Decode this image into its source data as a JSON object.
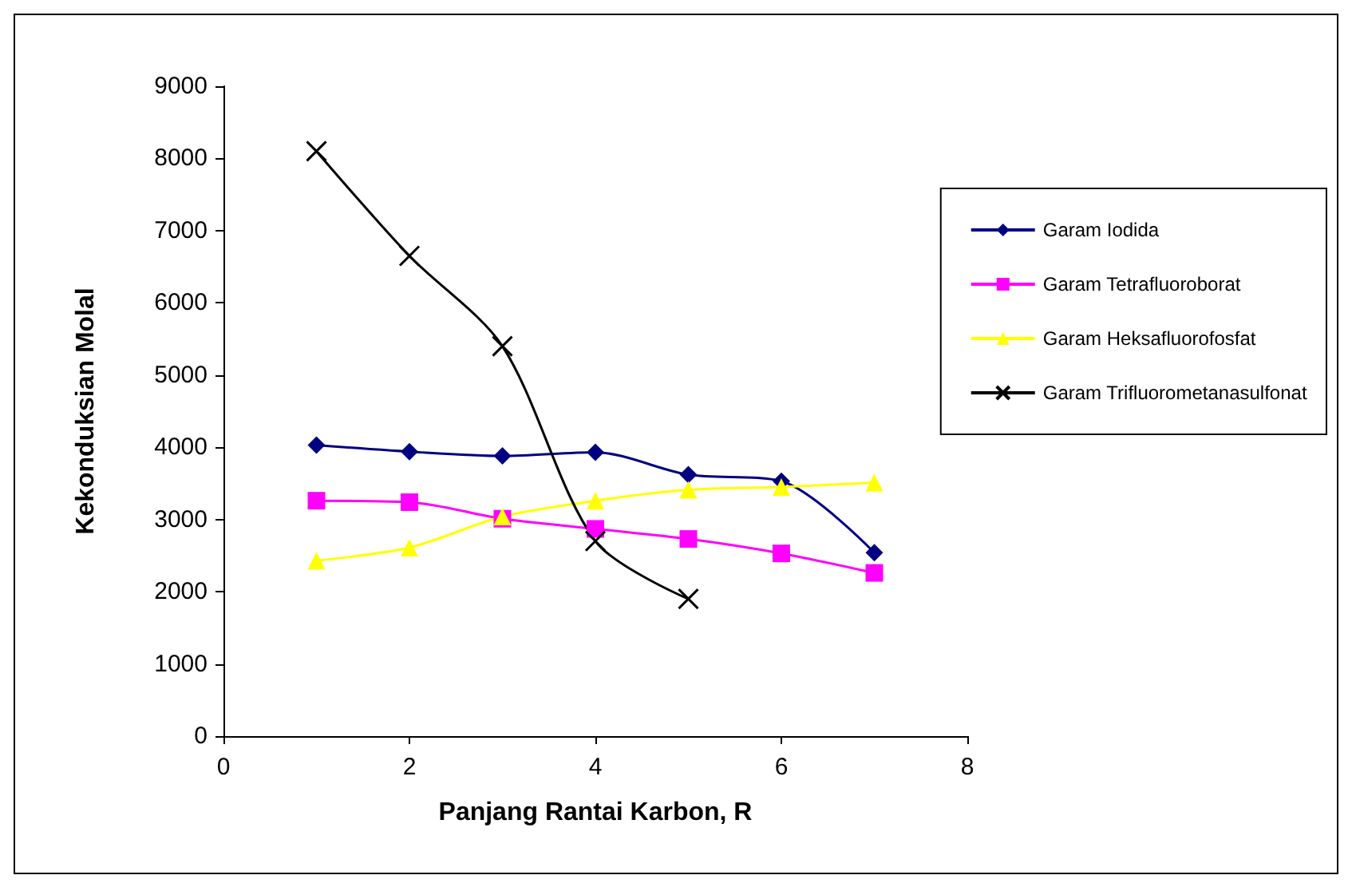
{
  "chart_data": {
    "type": "line",
    "xlabel": "Panjang Rantai Karbon, R",
    "ylabel": "Kekonduksian Molal",
    "xlim": [
      0,
      8
    ],
    "xticks": [
      0,
      2,
      4,
      6,
      8
    ],
    "ylim": [
      0,
      9000
    ],
    "yticks": [
      0,
      1000,
      2000,
      3000,
      4000,
      5000,
      6000,
      7000,
      8000,
      9000
    ],
    "grid": false,
    "legend": "right",
    "line_style": "solid",
    "series": [
      {
        "name": "Garam Iodida",
        "color": "#000080",
        "marker": "diamond",
        "x": [
          1,
          2,
          3,
          4,
          5,
          6,
          7
        ],
        "values": [
          4030,
          3940,
          3880,
          3930,
          3620,
          3530,
          2540
        ]
      },
      {
        "name": "Garam Tetrafluoroborat",
        "color": "#ff00ff",
        "marker": "square",
        "x": [
          1,
          2,
          3,
          4,
          5,
          6,
          7
        ],
        "values": [
          3260,
          3240,
          3010,
          2870,
          2730,
          2530,
          2260
        ]
      },
      {
        "name": "Garam Heksafluorofosfat",
        "color": "#ffff00",
        "marker": "triangle",
        "x": [
          1,
          2,
          3,
          4,
          5,
          6,
          7
        ],
        "values": [
          2430,
          2610,
          3040,
          3260,
          3410,
          3450,
          3510
        ]
      },
      {
        "name": "Garam Trifluorometanasulfonat",
        "color": "#000000",
        "marker": "cross",
        "x": [
          1,
          2,
          3,
          4,
          5
        ],
        "values": [
          8100,
          6650,
          5400,
          2700,
          1900
        ]
      }
    ]
  }
}
